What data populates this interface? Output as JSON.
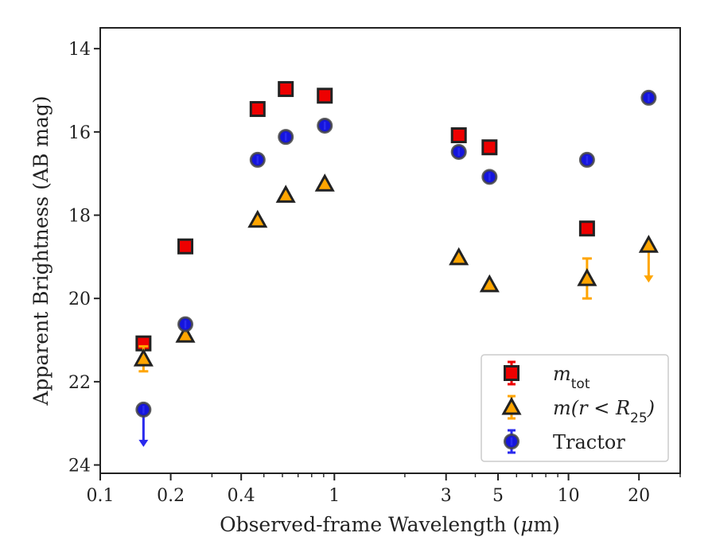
{
  "chart_data": {
    "type": "scatter",
    "title": "",
    "xlabel": "Observed-frame Wavelength (μm)",
    "ylabel": "Apparent Brightness (AB mag)",
    "xscale": "log",
    "xlim": [
      0.1,
      30
    ],
    "ylim": [
      24.2,
      13.5
    ],
    "y_inverted": true,
    "x_ticks": [
      0.1,
      0.2,
      0.4,
      1,
      3,
      5,
      10,
      20
    ],
    "x_tick_labels": [
      "0.1",
      "0.2",
      "0.4",
      "1",
      "3",
      "5",
      "10",
      "20"
    ],
    "y_ticks": [
      14,
      16,
      18,
      20,
      22,
      24
    ],
    "y_tick_labels": [
      "14",
      "16",
      "18",
      "20",
      "22",
      "24"
    ],
    "grid": false,
    "legend_position": "lower-right",
    "series": [
      {
        "name": "m_tot",
        "legend_main": "m",
        "legend_sub": "tot",
        "marker": "square",
        "color": "#ee0000",
        "edge_color": "#222222",
        "errorbar_color": "#ee0000",
        "points": [
          {
            "x": 0.153,
            "y": 21.08
          },
          {
            "x": 0.231,
            "y": 18.75
          },
          {
            "x": 0.47,
            "y": 15.45
          },
          {
            "x": 0.62,
            "y": 14.97
          },
          {
            "x": 0.91,
            "y": 15.13
          },
          {
            "x": 3.4,
            "y": 16.08
          },
          {
            "x": 4.6,
            "y": 16.37
          },
          {
            "x": 12.0,
            "y": 18.32
          }
        ]
      },
      {
        "name": "m(r < R_25)",
        "legend_main": "m(r < R",
        "legend_sub": "25",
        "legend_tail": ")",
        "marker": "triangle",
        "color": "#ffa500",
        "edge_color": "#222222",
        "errorbar_color": "#ffa500",
        "points": [
          {
            "x": 0.153,
            "y": 21.45,
            "yerr": 0.3
          },
          {
            "x": 0.231,
            "y": 20.88
          },
          {
            "x": 0.47,
            "y": 18.12
          },
          {
            "x": 0.62,
            "y": 17.52
          },
          {
            "x": 0.91,
            "y": 17.25
          },
          {
            "x": 3.4,
            "y": 19.02
          },
          {
            "x": 4.6,
            "y": 19.67
          },
          {
            "x": 12.0,
            "y": 19.52,
            "yerr": 0.48
          },
          {
            "x": 22.0,
            "y": 18.72,
            "upper_limit": true
          }
        ]
      },
      {
        "name": "Tractor",
        "legend_main": "Tractor",
        "marker": "circle",
        "color": "#1515dd",
        "edge_color": "#444444",
        "errorbar_color": "#2a2aee",
        "points": [
          {
            "x": 0.153,
            "y": 22.67,
            "upper_limit": true
          },
          {
            "x": 0.231,
            "y": 20.62
          },
          {
            "x": 0.47,
            "y": 16.67
          },
          {
            "x": 0.62,
            "y": 16.12
          },
          {
            "x": 0.91,
            "y": 15.85
          },
          {
            "x": 3.4,
            "y": 16.48
          },
          {
            "x": 4.6,
            "y": 17.08
          },
          {
            "x": 12.0,
            "y": 16.67
          },
          {
            "x": 22.0,
            "y": 15.18
          }
        ]
      }
    ]
  }
}
